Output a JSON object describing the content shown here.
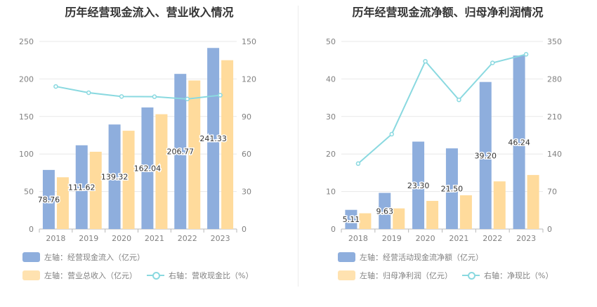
{
  "chart_data": [
    {
      "type": "bar",
      "title": "历年经营现金流入、营业收入情况",
      "categories": [
        "2018",
        "2019",
        "2020",
        "2021",
        "2022",
        "2023"
      ],
      "ylim": [
        0,
        250
      ],
      "yticks": [
        "0",
        "50",
        "100",
        "150",
        "200",
        "250"
      ],
      "y2lim": [
        0,
        150
      ],
      "y2ticks": [
        "0",
        "30",
        "60",
        "90",
        "120",
        "150"
      ],
      "series": [
        {
          "name": "左轴：经营现金流入（亿元）",
          "kind": "bar",
          "axis": "left",
          "color": "#8eaedd",
          "values": [
            78.76,
            111.62,
            139.32,
            162.04,
            206.77,
            241.33
          ],
          "labels": [
            "78.76",
            "111.62",
            "139.32",
            "162.04",
            "206.77",
            "241.33"
          ]
        },
        {
          "name": "左轴：营业总收入（亿元）",
          "kind": "bar",
          "axis": "left",
          "color": "#ffdb9c",
          "values": [
            69,
            103,
            131,
            153,
            198,
            225
          ]
        },
        {
          "name": "右轴：营收现金比（%）",
          "kind": "line",
          "axis": "right",
          "color": "#8ad9e0",
          "values": [
            114,
            109,
            106,
            105.8,
            104,
            107
          ]
        }
      ]
    },
    {
      "type": "bar",
      "title": "历年经营现金流净额、归母净利润情况",
      "categories": [
        "2018",
        "2019",
        "2020",
        "2021",
        "2022",
        "2023"
      ],
      "ylim": [
        0,
        50
      ],
      "yticks": [
        "0",
        "10",
        "20",
        "30",
        "40",
        "50"
      ],
      "y2lim": [
        0,
        350
      ],
      "y2ticks": [
        "0",
        "70",
        "140",
        "210",
        "280",
        "350"
      ],
      "series": [
        {
          "name": "左轴：经营活动现金流净额（亿元）",
          "kind": "bar",
          "axis": "left",
          "color": "#8eaedd",
          "values": [
            5.11,
            9.63,
            23.3,
            21.5,
            39.2,
            46.24
          ],
          "labels": [
            "5.11",
            "9.63",
            "23.30",
            "21.50",
            "39.20",
            "46.24"
          ]
        },
        {
          "name": "左轴：归母净利润（亿元）",
          "kind": "bar",
          "axis": "left",
          "color": "#ffdb9c",
          "values": [
            4.2,
            5.5,
            7.5,
            9.0,
            12.7,
            14.4
          ]
        },
        {
          "name": "右轴：净现比（%）",
          "kind": "line",
          "axis": "right",
          "color": "#8ad9e0",
          "values": [
            122,
            177,
            313,
            241,
            310,
            326
          ]
        }
      ]
    }
  ]
}
